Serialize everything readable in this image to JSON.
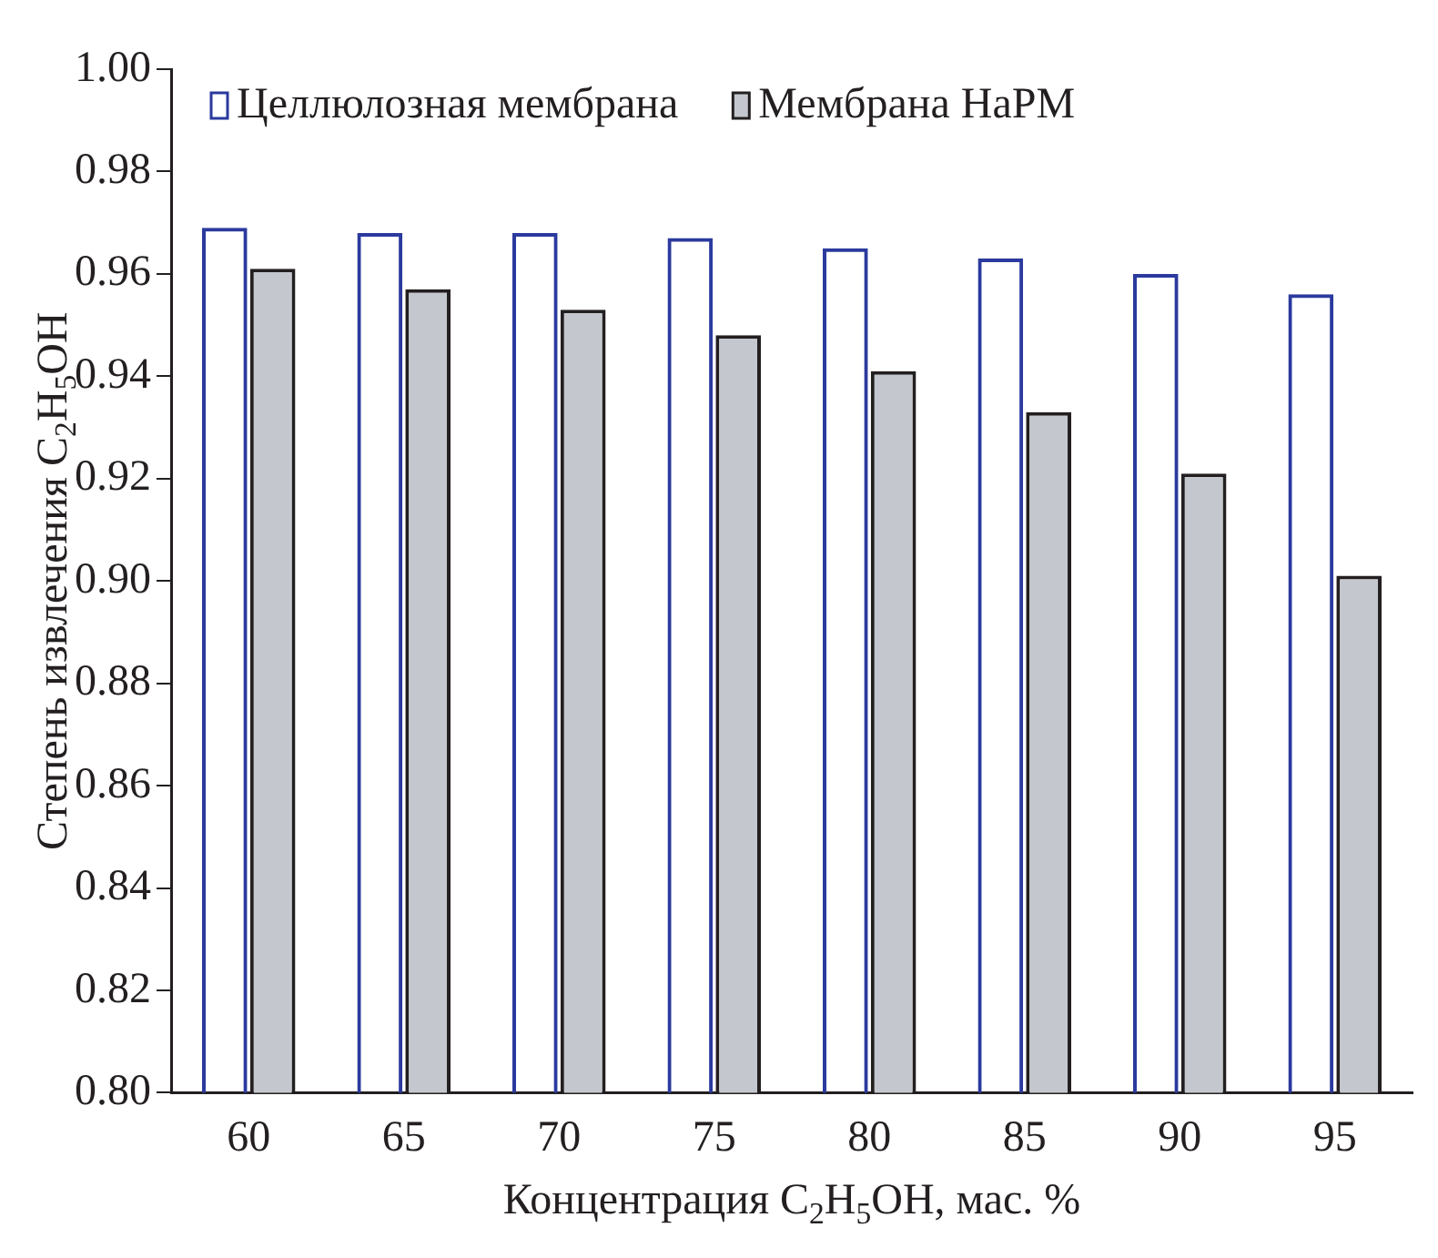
{
  "chart_data": {
    "type": "bar",
    "xlabel": "Концентрация C$_{2}$H$_{5}$OH, мас. %",
    "ylabel": "Степень извлечения C$_{2}$H$_{5}$OH",
    "categories": [
      "60",
      "65",
      "70",
      "75",
      "80",
      "85",
      "90",
      "95"
    ],
    "series": [
      {
        "name": "Целлюлозная мембрана",
        "color": "#2b3a9e",
        "values": [
          0.969,
          0.968,
          0.968,
          0.967,
          0.965,
          0.963,
          0.96,
          0.956
        ]
      },
      {
        "name": "Мембрана HaPM",
        "color": "#c4c8ce",
        "values": [
          0.961,
          0.957,
          0.953,
          0.948,
          0.941,
          0.933,
          0.921,
          0.901
        ]
      }
    ],
    "ylim": [
      0.8,
      1.0
    ],
    "yticks": [
      {
        "value": 0.8,
        "label": "0.80"
      },
      {
        "value": 0.82,
        "label": "0.82"
      },
      {
        "value": 0.84,
        "label": "0.84"
      },
      {
        "value": 0.86,
        "label": "0.86"
      },
      {
        "value": 0.88,
        "label": "0.88"
      },
      {
        "value": 0.9,
        "label": "0.90"
      },
      {
        "value": 0.92,
        "label": "0.92"
      },
      {
        "value": 0.94,
        "label": "0.94"
      },
      {
        "value": 0.96,
        "label": "0.96"
      },
      {
        "value": 0.98,
        "label": "0.98"
      },
      {
        "value": 1.0,
        "label": "1.00"
      }
    ],
    "grid": false,
    "legend": "top left"
  }
}
